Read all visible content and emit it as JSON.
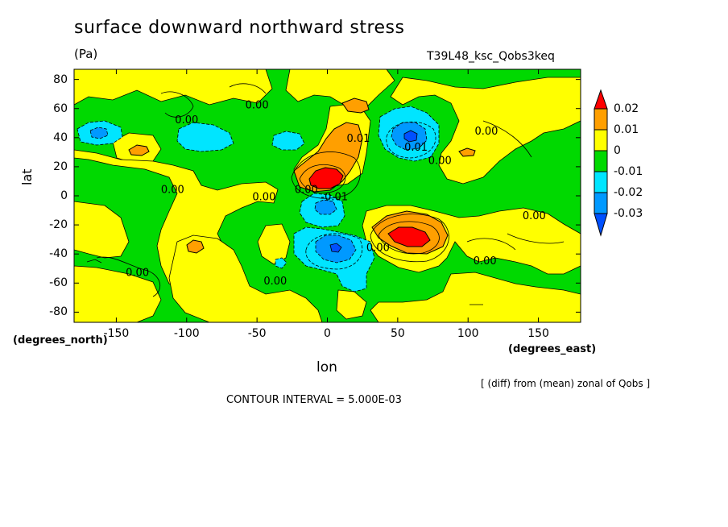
{
  "chart_data": {
    "type": "heatmap",
    "title": "surface downward northward stress",
    "units": "(Pa)",
    "experiment": "T39L48_ksc_Qobs3keq",
    "xlabel": "lon",
    "xunits": "(degrees_east)",
    "ylabel": "lat",
    "yunits": "(degrees_north)",
    "xlim": [
      -180,
      180
    ],
    "ylim": [
      -87,
      87
    ],
    "xticks": [
      -150,
      -100,
      -50,
      0,
      50,
      100,
      150
    ],
    "yticks": [
      80,
      60,
      40,
      20,
      0,
      -20,
      -40,
      -60,
      -80
    ],
    "xtick_labels": [
      "-150",
      "-100",
      "-50",
      "0",
      "50",
      "100",
      "150"
    ],
    "ytick_labels": [
      "80",
      "60",
      "40",
      "20",
      "0",
      "-20",
      "-40",
      "-60",
      "-80"
    ],
    "colorbar": {
      "levels": [
        "0.02",
        "0.01",
        "0",
        "-0.01",
        "-0.02",
        "-0.03"
      ],
      "colors": [
        "#ff0000",
        "#ff9f00",
        "#ffff00",
        "#00d900",
        "#00e5ff",
        "#0099ff",
        "#0050ff"
      ]
    },
    "contour_interval": "CONTOUR INTERVAL = 5.000E-03",
    "note": "[ (diff) from (mean) zonal of Qobs ]",
    "contour_labels": [
      {
        "text": "0.00",
        "lon": -50,
        "lat": 60
      },
      {
        "text": "0.00",
        "lon": -100,
        "lat": 50
      },
      {
        "text": "0.00",
        "lon": -110,
        "lat": 2
      },
      {
        "text": "0.00",
        "lon": -45,
        "lat": -3
      },
      {
        "text": "0.00",
        "lon": -15,
        "lat": 2
      },
      {
        "text": "-0.01",
        "lon": 5,
        "lat": -3
      },
      {
        "text": "0.01",
        "lon": 22,
        "lat": 37
      },
      {
        "text": "0.01",
        "lon": 63,
        "lat": 31
      },
      {
        "text": "0.00",
        "lon": 80,
        "lat": 22
      },
      {
        "text": "0.00",
        "lon": 113,
        "lat": 42
      },
      {
        "text": "0.00",
        "lon": 147,
        "lat": -16
      },
      {
        "text": "0.00",
        "lon": 112,
        "lat": -47
      },
      {
        "text": "0.00",
        "lon": 36,
        "lat": -38
      },
      {
        "text": "0.00",
        "lon": -37,
        "lat": -61
      },
      {
        "text": "0.00",
        "lon": -135,
        "lat": -55
      }
    ],
    "features": [
      {
        "name": "positive-maximum",
        "lon": 2,
        "lat": 9,
        "value": 0.025
      },
      {
        "name": "positive-maximum",
        "lon": 55,
        "lat": -30,
        "value": 0.025
      },
      {
        "name": "negative-minimum",
        "lon": 60,
        "lat": 40,
        "value": -0.025
      },
      {
        "name": "negative-minimum",
        "lon": 12,
        "lat": -38,
        "value": -0.025
      },
      {
        "name": "negative-minimum",
        "lon": -100,
        "lat": 38,
        "value": -0.015
      },
      {
        "name": "negative-minimum",
        "lon": -165,
        "lat": 37,
        "value": -0.015
      }
    ]
  }
}
